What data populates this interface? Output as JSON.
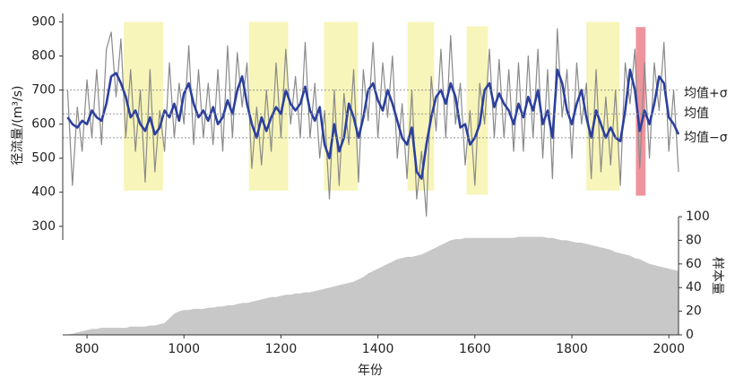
{
  "chart_data": {
    "type": "line",
    "ylabel": "径流量/(m³/s)",
    "y2label": "样本量",
    "xlabel": "年份",
    "xlim": [
      750,
      2020
    ],
    "xticks": [
      800,
      1000,
      1200,
      1400,
      1600,
      1800,
      2000
    ],
    "ylim": [
      260,
      925
    ],
    "yticks": [
      300,
      400,
      500,
      600,
      700,
      800,
      900
    ],
    "y2lim": [
      0,
      100
    ],
    "y2ticks": [
      0,
      20,
      40,
      60,
      80,
      100
    ],
    "x": [
      760,
      770,
      780,
      790,
      800,
      810,
      820,
      830,
      840,
      850,
      860,
      870,
      880,
      890,
      900,
      910,
      920,
      930,
      940,
      950,
      960,
      970,
      980,
      990,
      1000,
      1010,
      1020,
      1030,
      1040,
      1050,
      1060,
      1070,
      1080,
      1090,
      1100,
      1110,
      1120,
      1130,
      1140,
      1150,
      1160,
      1170,
      1180,
      1190,
      1200,
      1210,
      1220,
      1230,
      1240,
      1250,
      1260,
      1270,
      1280,
      1290,
      1300,
      1310,
      1320,
      1330,
      1340,
      1350,
      1360,
      1370,
      1380,
      1390,
      1400,
      1410,
      1420,
      1430,
      1440,
      1450,
      1460,
      1470,
      1480,
      1490,
      1500,
      1510,
      1520,
      1530,
      1540,
      1550,
      1560,
      1570,
      1580,
      1590,
      1600,
      1610,
      1620,
      1630,
      1640,
      1650,
      1660,
      1670,
      1680,
      1690,
      1700,
      1710,
      1720,
      1730,
      1740,
      1750,
      1760,
      1770,
      1780,
      1790,
      1800,
      1810,
      1820,
      1830,
      1840,
      1850,
      1860,
      1870,
      1880,
      1890,
      1900,
      1910,
      1920,
      1930,
      1940,
      1950,
      1960,
      1970,
      1980,
      1990,
      2000,
      2010,
      2020
    ],
    "series": [
      {
        "color": "#8a8a8a",
        "style": "line",
        "width": 1.2,
        "values": [
          700,
          420,
          650,
          520,
          730,
          560,
          760,
          540,
          820,
          870,
          680,
          850,
          560,
          760,
          520,
          700,
          430,
          760,
          460,
          640,
          520,
          780,
          560,
          720,
          600,
          830,
          540,
          760,
          560,
          720,
          540,
          760,
          520,
          830,
          560,
          810,
          650,
          780,
          470,
          650,
          480,
          700,
          520,
          780,
          560,
          820,
          600,
          740,
          560,
          840,
          560,
          720,
          500,
          640,
          380,
          700,
          420,
          690,
          540,
          760,
          430,
          760,
          610,
          840,
          560,
          780,
          620,
          800,
          500,
          660,
          440,
          700,
          380,
          520,
          330,
          740,
          580,
          820,
          560,
          860,
          600,
          720,
          480,
          640,
          420,
          720,
          600,
          820,
          560,
          790,
          560,
          760,
          520,
          780,
          520,
          800,
          560,
          820,
          500,
          760,
          440,
          880,
          620,
          760,
          500,
          780,
          600,
          720,
          440,
          760,
          460,
          680,
          480,
          700,
          420,
          780,
          660,
          820,
          470,
          780,
          500,
          780,
          640,
          840,
          520,
          700,
          460
        ]
      },
      {
        "color": "#2b3f9e",
        "style": "line",
        "width": 2.6,
        "values": [
          620,
          600,
          590,
          610,
          600,
          640,
          620,
          610,
          660,
          740,
          750,
          720,
          680,
          620,
          640,
          600,
          580,
          620,
          570,
          590,
          640,
          620,
          660,
          610,
          690,
          720,
          660,
          620,
          640,
          610,
          650,
          600,
          620,
          670,
          630,
          700,
          740,
          660,
          600,
          560,
          620,
          580,
          620,
          650,
          630,
          700,
          660,
          640,
          660,
          710,
          640,
          610,
          650,
          540,
          500,
          600,
          520,
          560,
          660,
          620,
          560,
          620,
          700,
          720,
          670,
          640,
          700,
          660,
          610,
          560,
          540,
          590,
          460,
          440,
          540,
          620,
          680,
          700,
          660,
          720,
          680,
          590,
          600,
          540,
          560,
          600,
          700,
          720,
          650,
          690,
          660,
          640,
          600,
          660,
          620,
          680,
          640,
          700,
          600,
          640,
          560,
          760,
          720,
          640,
          600,
          660,
          700,
          620,
          560,
          640,
          600,
          560,
          590,
          560,
          550,
          640,
          760,
          700,
          580,
          640,
          600,
          660,
          740,
          720,
          620,
          600,
          570
        ]
      },
      {
        "color": "#c8c8c8",
        "style": "area",
        "axis": "y2",
        "values": [
          0,
          1,
          2,
          3,
          4,
          5,
          5,
          6,
          6,
          6,
          6,
          6,
          6,
          7,
          7,
          7,
          7,
          8,
          8,
          9,
          10,
          14,
          18,
          20,
          21,
          21,
          22,
          22,
          22,
          23,
          23,
          24,
          24,
          25,
          25,
          26,
          27,
          27,
          28,
          29,
          30,
          31,
          32,
          32,
          33,
          34,
          34,
          35,
          35,
          36,
          36,
          37,
          38,
          39,
          40,
          41,
          42,
          43,
          44,
          45,
          47,
          49,
          52,
          54,
          56,
          58,
          60,
          62,
          64,
          65,
          66,
          66,
          67,
          68,
          70,
          72,
          74,
          76,
          78,
          80,
          81,
          81,
          82,
          82,
          82,
          82,
          82,
          82,
          82,
          82,
          82,
          82,
          82,
          83,
          83,
          83,
          83,
          83,
          83,
          82,
          82,
          81,
          80,
          80,
          79,
          78,
          78,
          77,
          76,
          75,
          74,
          73,
          72,
          70,
          69,
          68,
          67,
          65,
          64,
          62,
          60,
          59,
          58,
          57,
          56,
          55,
          54
        ]
      }
    ],
    "periods": [
      {
        "start": 876,
        "end": 957,
        "top": 900,
        "bottom": 405,
        "color": "#f2ee8a"
      },
      {
        "start": 1134,
        "end": 1215,
        "top": 900,
        "bottom": 405,
        "color": "#f2ee8a"
      },
      {
        "start": 1289,
        "end": 1359,
        "top": 900,
        "bottom": 405,
        "color": "#f2ee8a"
      },
      {
        "start": 1461,
        "end": 1516,
        "top": 900,
        "bottom": 405,
        "color": "#f2ee8a"
      },
      {
        "start": 1583,
        "end": 1627,
        "top": 887,
        "bottom": 393,
        "color": "#f2ee8a"
      },
      {
        "start": 1830,
        "end": 1898,
        "top": 900,
        "bottom": 405,
        "color": "#f2ee8a"
      },
      {
        "start": 1932,
        "end": 1952,
        "top": 885,
        "bottom": 390,
        "color": "#e8707c"
      }
    ],
    "reference_lines": [
      {
        "value": 700,
        "label": "均值+σ"
      },
      {
        "value": 630,
        "label": "均值"
      },
      {
        "value": 560,
        "label": "均值−σ"
      }
    ]
  }
}
